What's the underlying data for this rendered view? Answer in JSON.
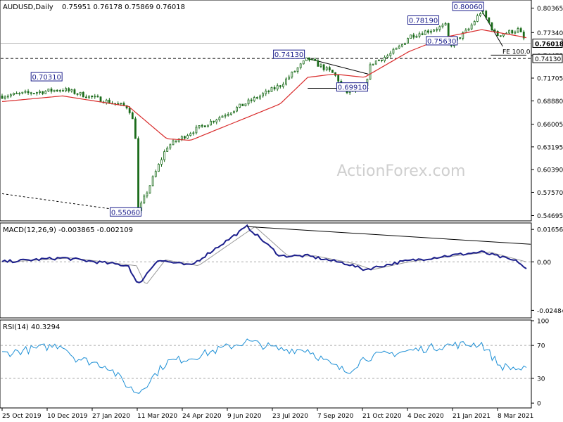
{
  "chart_data": [
    {
      "type": "candlestick",
      "title": "AUDUSD,Daily",
      "ohlc_header": "0.75951 0.76178 0.75869 0.76018",
      "y_ticks": [
        0.54695,
        0.5757,
        0.6039,
        0.63195,
        0.66005,
        0.6888,
        0.71705,
        0.74475,
        0.7734,
        0.80365
      ],
      "y_tick_labels": [
        "0.54695",
        "0.57570",
        "0.60390",
        "0.63195",
        "0.66005",
        "0.68880",
        "0.71705",
        "0.74475",
        "0.77340",
        "0.80365"
      ],
      "ylim": [
        0.5413,
        0.8128
      ],
      "current_price_label": "0.76018",
      "dashed_level_label": "0.74130",
      "fe_label": "FE 100.0",
      "level_labels": [
        "0.70310",
        "0.74130",
        "0.69910",
        "0.78190",
        "0.75630",
        "0.80060",
        "0.55060"
      ],
      "watermark": "ActionForex.com",
      "series": [
        {
          "name": "price",
          "color": "#1a6b1a"
        },
        {
          "name": "moving-average",
          "color": "#d92b2b"
        }
      ],
      "anchors": {
        "d": [
          0,
          46,
          96,
          101,
          103,
          125,
          143,
          211,
          232,
          249,
          252,
          262,
          275,
          280,
          293,
          303,
          309,
          337,
          339,
          354,
          364,
          375,
          392,
          398
        ],
        "close": [
          0.695,
          0.7031,
          0.681,
          0.655,
          0.5506,
          0.632,
          0.65,
          0.708,
          0.7413,
          0.725,
          0.722,
          0.6991,
          0.705,
          0.735,
          0.745,
          0.757,
          0.769,
          0.7819,
          0.7563,
          0.777,
          0.8006,
          0.77,
          0.777,
          0.7602
        ]
      },
      "ma_anchors": {
        "d": [
          0,
          46,
          96,
          125,
          143,
          211,
          232,
          252,
          275,
          293,
          309,
          337,
          364,
          392,
          398
        ],
        "value": [
          0.688,
          0.695,
          0.682,
          0.642,
          0.64,
          0.685,
          0.718,
          0.722,
          0.718,
          0.735,
          0.75,
          0.768,
          0.777,
          0.769,
          0.767
        ]
      }
    },
    {
      "type": "line",
      "title": "MACD(12,26,9) -0.003865 -0.002109",
      "y_ticks": [
        0.016567,
        0.0,
        -0.02484
      ],
      "y_tick_labels": [
        "0.016567",
        "0.00",
        "-0.02484"
      ],
      "ylim": [
        -0.0283,
        0.0195
      ],
      "series": [
        {
          "name": "macd",
          "color": "#1c1f8c"
        },
        {
          "name": "signal",
          "color": "#999999"
        }
      ],
      "anchors": {
        "d": [
          0,
          46,
          96,
          103,
          118,
          143,
          186,
          211,
          232,
          262,
          275,
          303,
          337,
          364,
          392,
          398
        ],
        "value": [
          0.0,
          0.002,
          -0.002,
          -0.012,
          0.001,
          -0.002,
          0.018,
          0.003,
          0.003,
          -0.001,
          -0.004,
          0.0,
          0.003,
          0.005,
          -0.0,
          -0.0039
        ]
      }
    },
    {
      "type": "line",
      "title": "RSI(14) 40.3294",
      "y_ticks": [
        100,
        70,
        30,
        0
      ],
      "y_tick_labels": [
        "100",
        "70",
        "30",
        "0"
      ],
      "ylim": [
        -5,
        100
      ],
      "series": [
        {
          "name": "rsi",
          "color": "#1e90d6"
        }
      ],
      "anchors": {
        "d": [
          0,
          46,
          55,
          80,
          96,
          103,
          125,
          143,
          186,
          211,
          232,
          250,
          262,
          275,
          303,
          337,
          364,
          378,
          398
        ],
        "value": [
          60,
          71,
          55,
          45,
          20,
          12,
          50,
          55,
          75,
          65,
          65,
          46,
          38,
          55,
          62,
          70,
          72,
          45,
          40
        ]
      }
    }
  ],
  "x_axis": {
    "ticks": [
      "25 Oct 2019",
      "10 Dec 2019",
      "27 Jan 2020",
      "11 Mar 2020",
      "24 Apr 2020",
      "9 Jun 2020",
      "23 Jul 2020",
      "7 Sep 2020",
      "21 Oct 2020",
      "4 Dec 2020",
      "21 Jan 2021",
      "8 Mar 2021"
    ]
  }
}
